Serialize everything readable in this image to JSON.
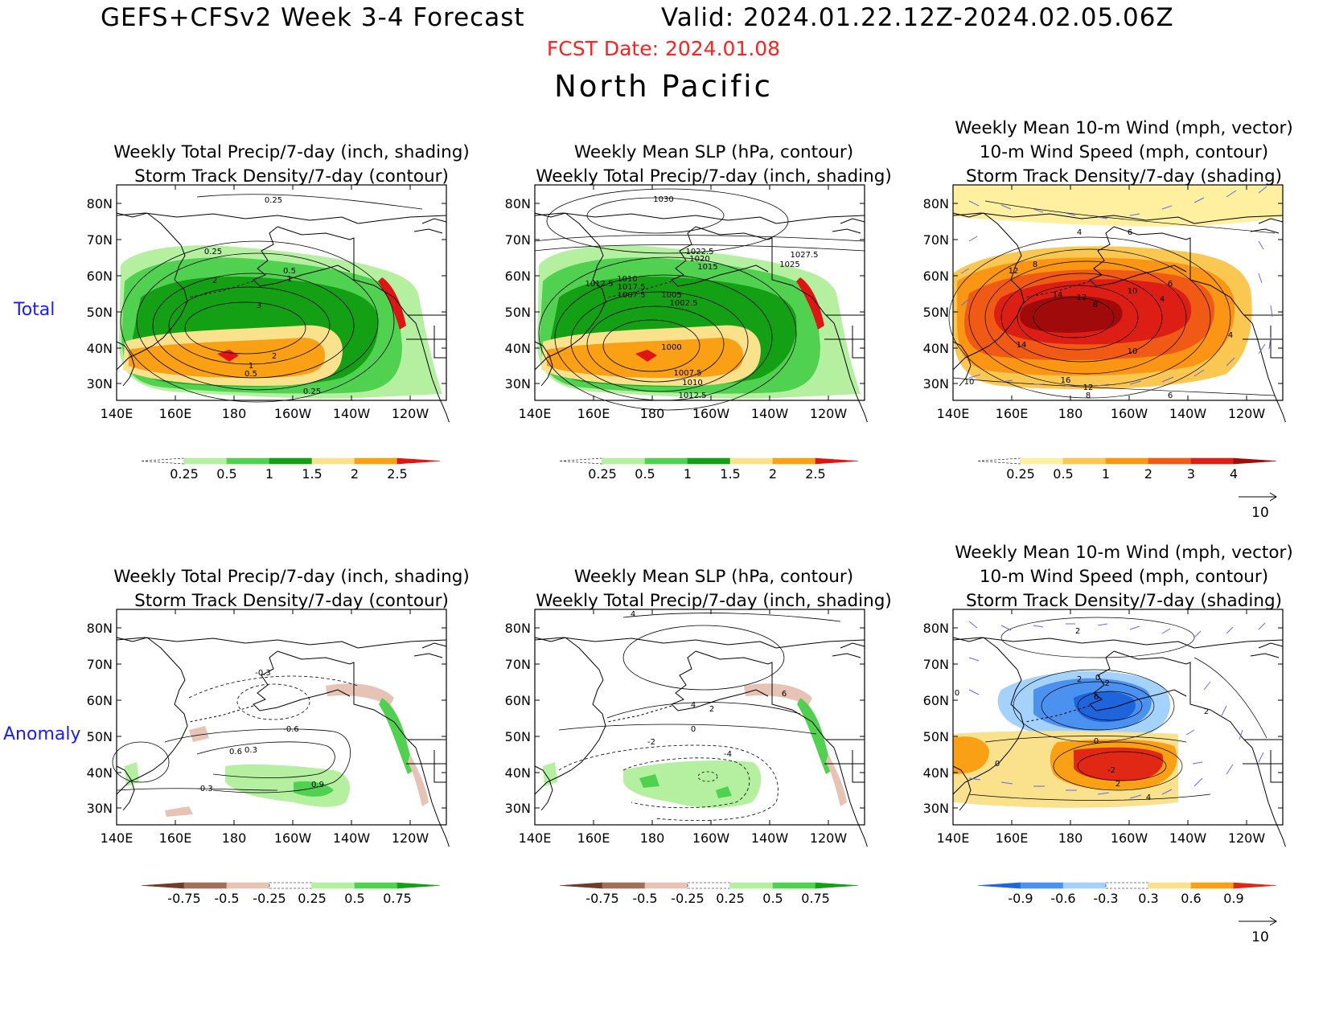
{
  "header": {
    "product": "GEFS+CFSv2 Week 3-4 Forecast",
    "valid": "Valid: 2024.01.22.12Z-2024.02.05.06Z",
    "fcst_date": "FCST Date: 2024.01.08",
    "region": "North Pacific"
  },
  "rows": {
    "total": "Total",
    "anomaly": "Anomaly"
  },
  "axes": {
    "lon_labels": [
      "140E",
      "160E",
      "180",
      "160W",
      "140W",
      "120W"
    ],
    "lat_labels": [
      "80N",
      "70N",
      "60N",
      "50N",
      "40N",
      "30N"
    ]
  },
  "panels": {
    "precip_total": {
      "title": [
        "Weekly Total Precip/7-day (inch, shading)",
        "Storm Track Density/7-day (contour)"
      ],
      "contour_labels": [
        "0.25",
        "0.25",
        "0.5",
        "1",
        "2",
        "3",
        "2",
        "1",
        "0.5",
        "0.25"
      ],
      "colorbar": {
        "labels": [
          "0.25",
          "0.5",
          "1",
          "1.5",
          "2",
          "2.5"
        ],
        "colors": [
          "#ffffff",
          "#b4f0a0",
          "#50d250",
          "#14a014",
          "#fae18c",
          "#faa014",
          "#e11414"
        ]
      }
    },
    "slp_total": {
      "title": [
        "Weekly Mean SLP (hPa, contour)",
        "Weekly Total Precip/7-day (inch, shading)"
      ],
      "contour_labels": [
        "1030",
        "1027.5",
        "1025",
        "1022.5",
        "1020",
        "1017.5",
        "1015",
        "1012.5",
        "1010",
        "1007.5",
        "1005",
        "1002.5",
        "1000",
        "1007.5",
        "1010",
        "1012.5"
      ],
      "colorbar": {
        "labels": [
          "0.25",
          "0.5",
          "1",
          "1.5",
          "2",
          "2.5"
        ],
        "colors": [
          "#ffffff",
          "#b4f0a0",
          "#50d250",
          "#14a014",
          "#fae18c",
          "#faa014",
          "#e11414"
        ]
      }
    },
    "wind_total": {
      "title": [
        "Weekly Mean 10-m Wind (mph, vector)",
        "10-m Wind Speed (mph, contour)",
        "Storm Track Density/7-day (shading)"
      ],
      "contour_labels": [
        "4",
        "6",
        "8",
        "12",
        "14",
        "12",
        "8",
        "10",
        "6",
        "4",
        "14",
        "10",
        "4",
        "10",
        "16",
        "12",
        "8",
        "6"
      ],
      "colorbar": {
        "labels": [
          "0.25",
          "0.5",
          "1",
          "2",
          "3",
          "4"
        ],
        "colors": [
          "#ffffff",
          "#fff0a0",
          "#fac850",
          "#fa9614",
          "#f05a14",
          "#dc1e14",
          "#a00a0a"
        ]
      },
      "vector_ref": "10"
    },
    "precip_anom": {
      "title": [
        "Weekly Total Precip/7-day (inch, shading)",
        "Storm Track Density/7-day (contour)"
      ],
      "contour_labels": [
        "-0.3",
        "-0.6",
        "0.6",
        "0.3",
        "0.9",
        "-0.3"
      ],
      "colorbar": {
        "labels": [
          "-0.75",
          "-0.5",
          "-0.25",
          "0.25",
          "0.5",
          "0.75"
        ],
        "colors": [
          "#6e3c28",
          "#a0705a",
          "#e6c3b4",
          "#ffffff",
          "#b4f0a0",
          "#50d250",
          "#14a014"
        ]
      }
    },
    "slp_anom": {
      "title": [
        "Weekly Mean SLP (hPa, contour)",
        "Weekly Total Precip/7-day (inch, shading)"
      ],
      "contour_labels": [
        "4",
        "6",
        "4",
        "2",
        "0",
        "-2",
        "-4"
      ],
      "colorbar": {
        "labels": [
          "-0.75",
          "-0.5",
          "-0.25",
          "0.25",
          "0.5",
          "0.75"
        ],
        "colors": [
          "#6e3c28",
          "#a0705a",
          "#e6c3b4",
          "#ffffff",
          "#b4f0a0",
          "#50d250",
          "#14a014"
        ]
      }
    },
    "wind_anom": {
      "title": [
        "Weekly Mean 10-m Wind (mph, vector)",
        "10-m Wind Speed (mph, contour)",
        "Storm Track Density/7-day (shading)"
      ],
      "contour_labels": [
        "2",
        "2",
        "0",
        "-2",
        "6",
        "0",
        "0",
        "2",
        "-2",
        "2",
        "4",
        "0"
      ],
      "colorbar": {
        "labels": [
          "-0.9",
          "-0.6",
          "-0.3",
          "0.3",
          "0.6",
          "0.9"
        ],
        "colors": [
          "#1e64dc",
          "#4b91f0",
          "#a5d2fa",
          "#ffffff",
          "#fae18c",
          "#faa014",
          "#e12814"
        ]
      },
      "vector_ref": "10"
    }
  }
}
